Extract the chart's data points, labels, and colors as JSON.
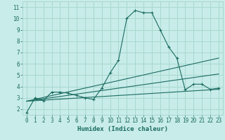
{
  "title": "",
  "xlabel": "Humidex (Indice chaleur)",
  "ylabel": "",
  "bg_color": "#c8ece9",
  "grid_color": "#a8d8d0",
  "line_color": "#1a6b60",
  "marker": "+",
  "xlim": [
    -0.5,
    23.5
  ],
  "ylim": [
    1.5,
    11.5
  ],
  "xticks": [
    0,
    1,
    2,
    3,
    4,
    5,
    6,
    7,
    8,
    9,
    10,
    11,
    12,
    13,
    14,
    15,
    16,
    17,
    18,
    19,
    20,
    21,
    22,
    23
  ],
  "yticks": [
    2,
    3,
    4,
    5,
    6,
    7,
    8,
    9,
    10,
    11
  ],
  "main_curve": {
    "x": [
      0,
      1,
      2,
      3,
      4,
      5,
      6,
      7,
      8,
      9,
      10,
      11,
      12,
      13,
      14,
      15,
      16,
      17,
      18,
      19,
      20,
      21,
      22,
      23
    ],
    "y": [
      1.7,
      3.0,
      2.75,
      3.5,
      3.5,
      3.4,
      3.2,
      3.0,
      2.85,
      3.85,
      5.2,
      6.3,
      10.0,
      10.7,
      10.5,
      10.5,
      9.0,
      7.5,
      6.5,
      3.7,
      4.2,
      4.2,
      3.75,
      3.85
    ]
  },
  "trend1": {
    "x": [
      0,
      23
    ],
    "y": [
      2.7,
      3.75
    ]
  },
  "trend2": {
    "x": [
      0,
      23
    ],
    "y": [
      2.7,
      5.1
    ]
  },
  "trend3": {
    "x": [
      0,
      23
    ],
    "y": [
      2.7,
      6.5
    ]
  }
}
